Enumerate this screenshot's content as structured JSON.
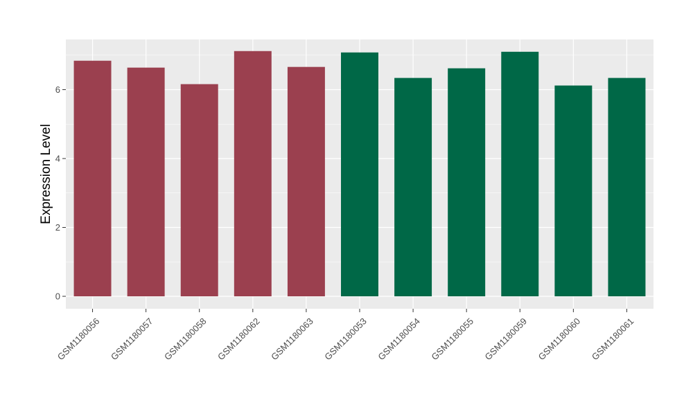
{
  "chart_data": {
    "type": "bar",
    "title": "",
    "xlabel": "",
    "ylabel": "Expression Level",
    "ylim": [
      0,
      7.4
    ],
    "yticks": [
      0,
      2,
      4,
      6
    ],
    "grid": true,
    "legend": "none",
    "colors": {
      "group_a": "#9b404f",
      "group_b": "#006847",
      "panel_bg": "#ebebeb",
      "grid": "#ffffff"
    },
    "categories": [
      "GSM1180056",
      "GSM1180057",
      "GSM1180058",
      "GSM1180062",
      "GSM1180063",
      "GSM1180053",
      "GSM1180054",
      "GSM1180055",
      "GSM1180059",
      "GSM1180060",
      "GSM1180061"
    ],
    "values": [
      6.84,
      6.64,
      6.16,
      7.12,
      6.66,
      7.08,
      6.34,
      6.62,
      7.1,
      6.12,
      6.34
    ],
    "groups": [
      "a",
      "a",
      "a",
      "a",
      "a",
      "b",
      "b",
      "b",
      "b",
      "b",
      "b"
    ]
  }
}
